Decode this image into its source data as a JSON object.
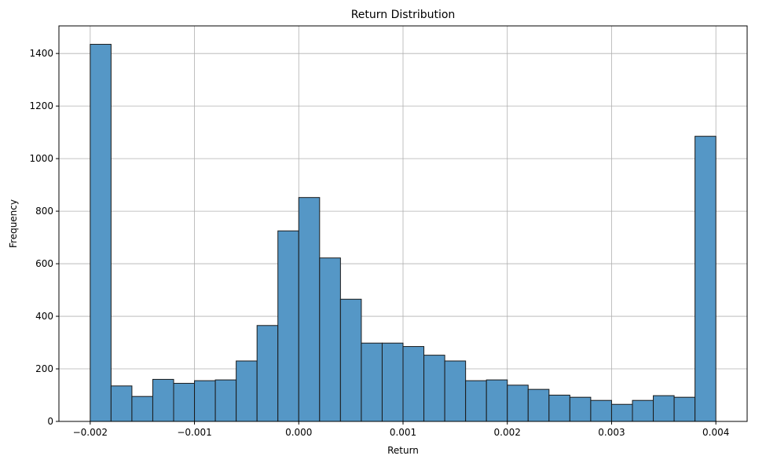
{
  "chart_data": {
    "type": "bar",
    "title": "Return Distribution",
    "xlabel": "Return",
    "ylabel": "Frequency",
    "bin_edges": [
      -0.002,
      -0.0018,
      -0.0016,
      -0.0014,
      -0.0012,
      -0.001,
      -0.0008,
      -0.0006,
      -0.0004,
      -0.0002,
      0.0,
      0.0002,
      0.0004,
      0.0006,
      0.0008,
      0.001,
      0.0012,
      0.0014,
      0.0016,
      0.0018,
      0.002,
      0.0022,
      0.0024,
      0.0026,
      0.0028,
      0.003,
      0.0032,
      0.0034,
      0.0036,
      0.0038,
      0.004
    ],
    "values": [
      1435,
      135,
      95,
      160,
      145,
      155,
      158,
      230,
      365,
      725,
      852,
      622,
      465,
      298,
      298,
      285,
      252,
      230,
      155,
      158,
      138,
      122,
      100,
      92,
      80,
      65,
      80,
      98,
      92,
      1085
    ],
    "xlim": [
      -0.0023,
      0.0043
    ],
    "ylim": [
      0,
      1505
    ],
    "xticks": [
      -0.002,
      -0.001,
      0.0,
      0.001,
      0.002,
      0.003,
      0.004
    ],
    "xtick_labels": [
      "−0.002",
      "−0.001",
      "0.000",
      "0.001",
      "0.002",
      "0.003",
      "0.004"
    ],
    "yticks": [
      0,
      200,
      400,
      600,
      800,
      1000,
      1200,
      1400
    ],
    "ytick_labels": [
      "0",
      "200",
      "400",
      "600",
      "800",
      "1000",
      "1200",
      "1400"
    ],
    "bar_color": "#5597c6",
    "edge_color": "#1a1a1a",
    "grid": true
  }
}
